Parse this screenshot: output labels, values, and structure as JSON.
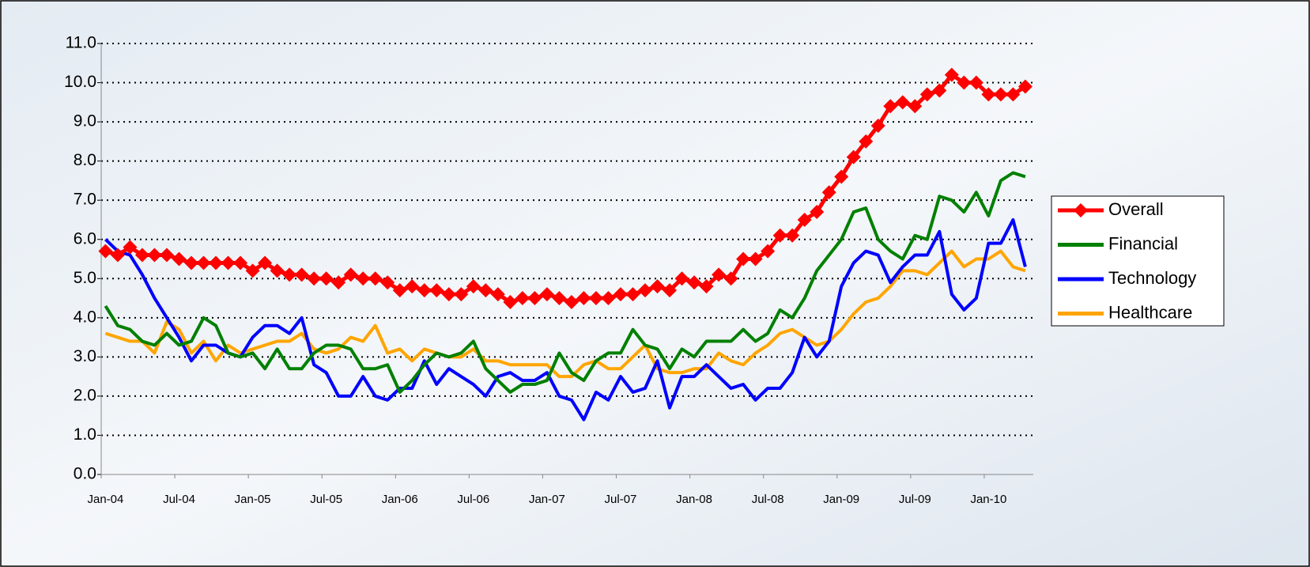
{
  "chart_data": {
    "type": "line",
    "categories": [
      "Jan-04",
      null,
      null,
      null,
      null,
      null,
      "Jul-04",
      null,
      null,
      null,
      null,
      null,
      "Jan-05",
      null,
      null,
      null,
      null,
      null,
      "Jul-05",
      null,
      null,
      null,
      null,
      null,
      "Jan-06",
      null,
      null,
      null,
      null,
      null,
      "Jul-06",
      null,
      null,
      null,
      null,
      null,
      "Jan-07",
      null,
      null,
      null,
      null,
      null,
      "Jul-07",
      null,
      null,
      null,
      null,
      null,
      "Jan-08",
      null,
      null,
      null,
      null,
      null,
      "Jul-08",
      null,
      null,
      null,
      null,
      null,
      "Jan-09",
      null,
      null,
      null,
      null,
      null,
      "Jul-09",
      null,
      null,
      null,
      null,
      null,
      "Jan-10",
      null,
      null,
      null
    ],
    "series": [
      {
        "name": "Overall",
        "color": "#ff0000",
        "marker": "diamond",
        "values": [
          5.7,
          5.6,
          5.8,
          5.6,
          5.6,
          5.6,
          5.5,
          5.4,
          5.4,
          5.4,
          5.4,
          5.4,
          5.2,
          5.4,
          5.2,
          5.1,
          5.1,
          5.0,
          5.0,
          4.9,
          5.1,
          5.0,
          5.0,
          4.9,
          4.7,
          4.8,
          4.7,
          4.7,
          4.6,
          4.6,
          4.8,
          4.7,
          4.6,
          4.4,
          4.5,
          4.5,
          4.6,
          4.5,
          4.4,
          4.5,
          4.5,
          4.5,
          4.6,
          4.6,
          4.7,
          4.8,
          4.7,
          5.0,
          4.9,
          4.8,
          5.1,
          5.0,
          5.5,
          5.5,
          5.7,
          6.1,
          6.1,
          6.5,
          6.7,
          7.2,
          7.6,
          8.1,
          8.5,
          8.9,
          9.4,
          9.5,
          9.4,
          9.7,
          9.8,
          10.2,
          10.0,
          10.0,
          9.7,
          9.7,
          9.7,
          9.9
        ]
      },
      {
        "name": "Financial",
        "color": "#008000",
        "values": [
          4.3,
          3.8,
          3.7,
          3.4,
          3.3,
          3.6,
          3.3,
          3.4,
          4.0,
          3.8,
          3.1,
          3.0,
          3.1,
          2.7,
          3.2,
          2.7,
          2.7,
          3.1,
          3.3,
          3.3,
          3.2,
          2.7,
          2.7,
          2.8,
          2.1,
          2.4,
          2.8,
          3.1,
          3.0,
          3.1,
          3.4,
          2.7,
          2.4,
          2.1,
          2.3,
          2.3,
          2.4,
          3.1,
          2.6,
          2.4,
          2.9,
          3.1,
          3.1,
          3.7,
          3.3,
          3.2,
          2.7,
          3.2,
          3.0,
          3.4,
          3.4,
          3.4,
          3.7,
          3.4,
          3.6,
          4.2,
          4.0,
          4.5,
          5.2,
          5.6,
          6.0,
          6.7,
          6.8,
          6.0,
          5.7,
          5.5,
          6.1,
          6.0,
          7.1,
          7.0,
          6.7,
          7.2,
          6.6,
          7.5,
          7.7,
          7.6
        ]
      },
      {
        "name": "Technology",
        "color": "#0000ff",
        "values": [
          6.0,
          5.7,
          5.6,
          5.1,
          4.5,
          4.0,
          3.5,
          2.9,
          3.3,
          3.3,
          3.1,
          3.0,
          3.5,
          3.8,
          3.8,
          3.6,
          4.0,
          2.8,
          2.6,
          2.0,
          2.0,
          2.5,
          2.0,
          1.9,
          2.2,
          2.2,
          2.9,
          2.3,
          2.7,
          2.5,
          2.3,
          2.0,
          2.5,
          2.6,
          2.4,
          2.4,
          2.6,
          2.0,
          1.9,
          1.4,
          2.1,
          1.9,
          2.5,
          2.1,
          2.2,
          2.9,
          1.7,
          2.5,
          2.5,
          2.8,
          2.5,
          2.2,
          2.3,
          1.9,
          2.2,
          2.2,
          2.6,
          3.5,
          3.0,
          3.4,
          4.8,
          5.4,
          5.7,
          5.6,
          4.9,
          5.3,
          5.6,
          5.6,
          6.2,
          4.6,
          4.2,
          4.5,
          5.9,
          5.9,
          6.5,
          5.3
        ]
      },
      {
        "name": "Healthcare",
        "color": "#ffa500",
        "values": [
          3.6,
          3.5,
          3.4,
          3.4,
          3.1,
          3.9,
          3.7,
          3.1,
          3.4,
          2.9,
          3.3,
          3.1,
          3.2,
          3.3,
          3.4,
          3.4,
          3.6,
          3.2,
          3.1,
          3.2,
          3.5,
          3.4,
          3.8,
          3.1,
          3.2,
          2.9,
          3.2,
          3.1,
          3.0,
          3.0,
          3.2,
          2.9,
          2.9,
          2.8,
          2.8,
          2.8,
          2.8,
          2.5,
          2.5,
          2.8,
          2.9,
          2.7,
          2.7,
          3.0,
          3.3,
          2.7,
          2.6,
          2.6,
          2.7,
          2.7,
          3.1,
          2.9,
          2.8,
          3.1,
          3.3,
          3.6,
          3.7,
          3.5,
          3.3,
          3.4,
          3.7,
          4.1,
          4.4,
          4.5,
          4.8,
          5.2,
          5.2,
          5.1,
          5.4,
          5.7,
          5.3,
          5.5,
          5.5,
          5.7,
          5.3,
          5.2
        ]
      }
    ],
    "ylim": [
      0,
      11
    ],
    "yticks": [
      {
        "value": 0,
        "label": "0.0"
      },
      {
        "value": 1,
        "label": "1.0"
      },
      {
        "value": 2,
        "label": "2.0"
      },
      {
        "value": 3,
        "label": "3.0"
      },
      {
        "value": 4,
        "label": "4.0"
      },
      {
        "value": 5,
        "label": "5.0"
      },
      {
        "value": 6,
        "label": "6.0"
      },
      {
        "value": 7,
        "label": "7.0"
      },
      {
        "value": 8,
        "label": "8.0"
      },
      {
        "value": 9,
        "label": "9.0"
      },
      {
        "value": 10,
        "label": "10.0"
      },
      {
        "value": 11,
        "label": "11.0"
      }
    ],
    "grid": true,
    "legend": "right"
  }
}
